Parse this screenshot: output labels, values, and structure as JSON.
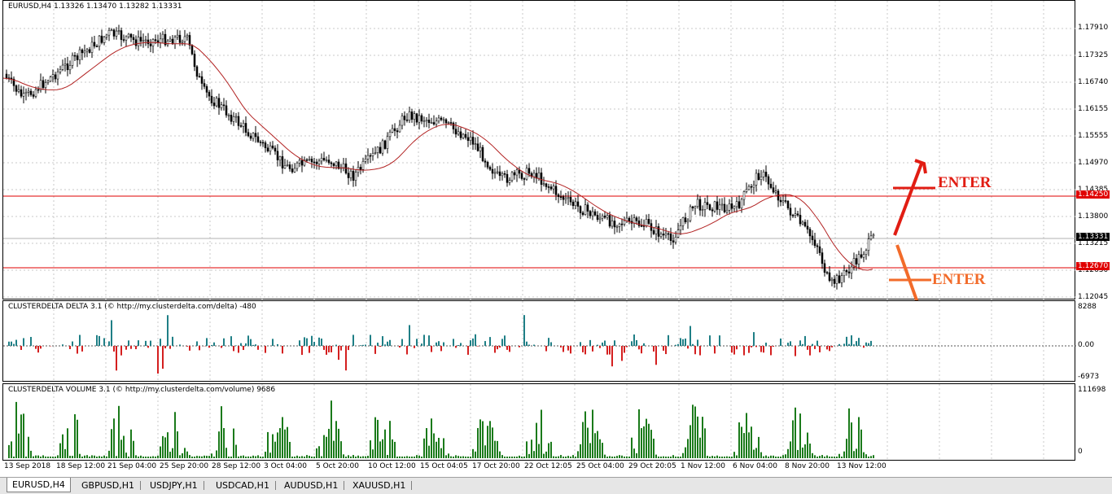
{
  "main_chart": {
    "title": "EURUSD,H4  1.13326 1.13470 1.13282 1.13331",
    "price_labels": [
      "1.17910",
      "1.17325",
      "1.16740",
      "1.16155",
      "1.15555",
      "1.14970",
      "1.14385",
      "1.13800",
      "1.13215",
      "1.12630",
      "1.12045"
    ],
    "line_tags": [
      {
        "text": "1.14250",
        "color": "#e00000"
      },
      {
        "text": "1.13331",
        "color": "#000000"
      },
      {
        "text": "1.12670",
        "color": "#e00000"
      }
    ],
    "annotations": {
      "enter_top": "ENTER",
      "enter_bottom": "ENTER",
      "enter_top_color": "#e11d13",
      "enter_bottom_color": "#f26b2a"
    }
  },
  "delta_panel": {
    "title": "CLUSTERDELTA DELTA 3.1 (© http://my.clusterdelta.com/delta) -480",
    "scale": [
      "8288",
      "0.00",
      "-6973"
    ]
  },
  "volume_panel": {
    "title": "CLUSTERDELTA VOLUME 3.1 (© http://my.clusterdelta.com/volume) 9686",
    "scale": [
      "111698",
      "0"
    ]
  },
  "x_axis": [
    "13 Sep 2018",
    "18 Sep 12:00",
    "21 Sep 04:00",
    "25 Sep 20:00",
    "28 Sep 12:00",
    "3 Oct 04:00",
    "5 Oct 20:00",
    "10 Oct 12:00",
    "15 Oct 04:05",
    "17 Oct 20:00",
    "22 Oct 12:05",
    "25 Oct 04:00",
    "29 Oct 20:05",
    "1 Nov 12:00",
    "6 Nov 04:00",
    "8 Nov 20:00",
    "13 Nov 12:00"
  ],
  "tabs": [
    "EURUSD,H4",
    "GBPUSD,H1",
    "USDJPY,H1",
    "USDCAD,H1",
    "AUDUSD,H1",
    "XAUUSD,H1"
  ],
  "colors": {
    "candle": "#000000",
    "ma": "#b22222",
    "delta_pos": "#1f7f86",
    "delta_neg": "#d41f1f",
    "volume": "#1a7a1a",
    "grid": "#c8c8c8"
  }
}
